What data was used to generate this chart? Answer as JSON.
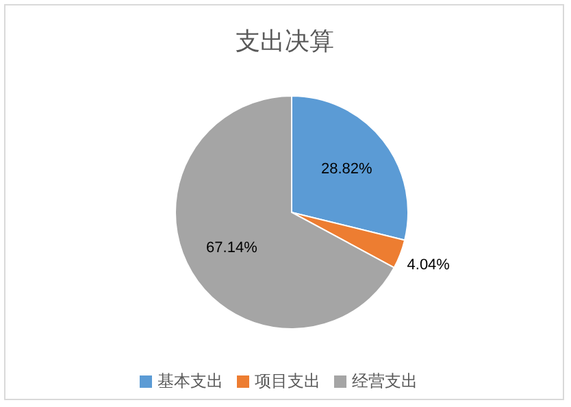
{
  "chart_data": {
    "type": "pie",
    "title": "支出决算",
    "categories": [
      "基本支出",
      "项目支出",
      "经营支出"
    ],
    "values": [
      28.82,
      4.04,
      67.14
    ],
    "colors": [
      "#5b9bd5",
      "#ed7d31",
      "#a5a5a5"
    ],
    "value_labels": [
      "28.82%",
      "4.04%",
      "67.14%"
    ],
    "legend": "bottom"
  }
}
